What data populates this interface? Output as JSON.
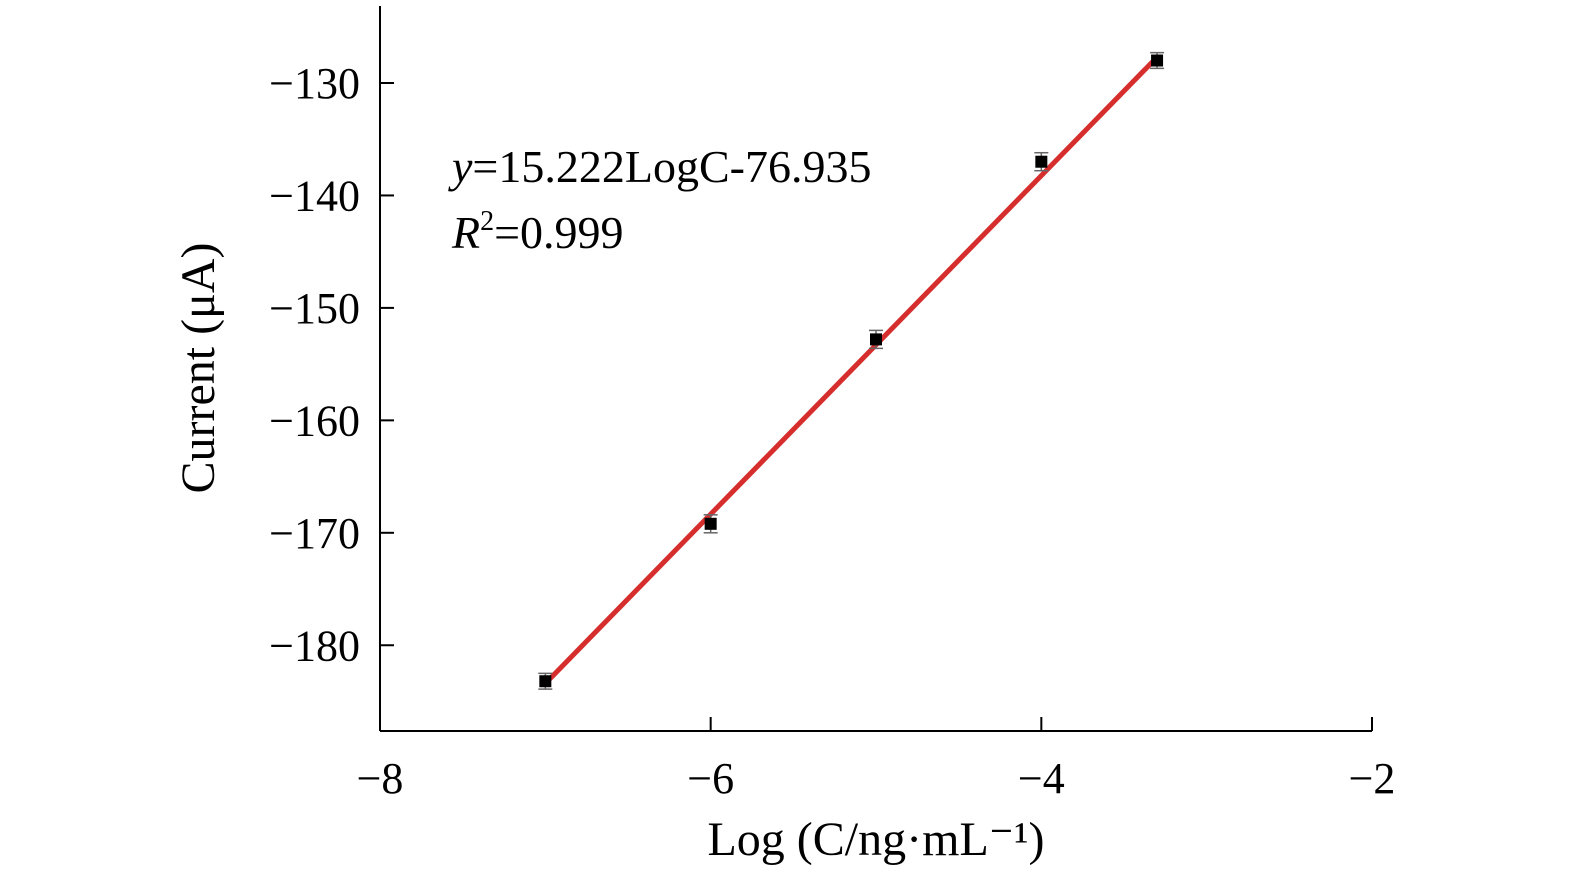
{
  "chart_data": {
    "type": "scatter",
    "title": "",
    "xlabel": "Log (C/ng·mL⁻¹)",
    "ylabel": "Current (μA)",
    "xlim": [
      -8,
      -2
    ],
    "ylim": [
      -187,
      -123
    ],
    "x_ticks": [
      -8,
      -6,
      -4,
      -2
    ],
    "x_tick_labels": [
      "−8",
      "−6",
      "−4",
      "−2"
    ],
    "y_ticks": [
      -180,
      -170,
      -160,
      -150,
      -140,
      -130
    ],
    "y_tick_labels": [
      "−180",
      "−170",
      "−160",
      "−150",
      "−140",
      "−130"
    ],
    "grid": false,
    "series": [
      {
        "x": [
          -7,
          -6,
          -5,
          -4,
          -3.3
        ],
        "y": [
          -183.2,
          -169.2,
          -152.8,
          -137.0,
          -128.0
        ],
        "error": [
          0.7,
          0.8,
          0.8,
          0.8,
          0.7
        ],
        "marker": "square",
        "color": "#000000"
      }
    ],
    "fit_line": {
      "color": "#d62d2d",
      "x": [
        -7,
        -3.3
      ],
      "y": [
        -183.4,
        -127.7
      ]
    },
    "annotations": {
      "equation_var": "y",
      "equation_rest": "=15.222LogC-76.935",
      "r2_var": "R",
      "r2_sup": "2",
      "r2_rest": "=0.999"
    }
  }
}
